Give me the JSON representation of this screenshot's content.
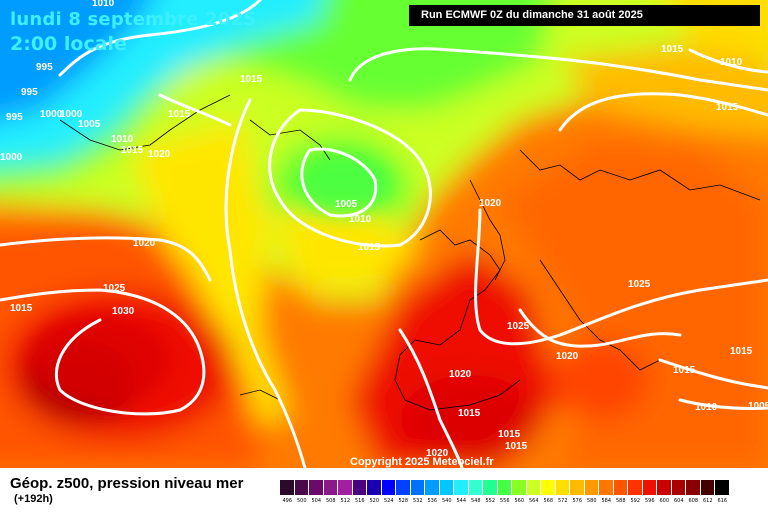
{
  "title": {
    "date": "lundi 8 septembre 2025",
    "time": "2:00 locale",
    "run": "Run ECMWF 0Z du dimanche 31 août 2025"
  },
  "copyright": "Copyright 2025 Meteociel.fr",
  "legend": {
    "title": "Géop. z500, pression niveau mer",
    "subtitle": "(+192h)",
    "steps": [
      {
        "label": "496",
        "color": "#2a0a2a"
      },
      {
        "label": "500",
        "color": "#4a0a4a"
      },
      {
        "label": "504",
        "color": "#6a0a6a"
      },
      {
        "label": "508",
        "color": "#8a1a8a"
      },
      {
        "label": "512",
        "color": "#a020a0"
      },
      {
        "label": "516",
        "color": "#4b0082"
      },
      {
        "label": "520",
        "color": "#1a00b0"
      },
      {
        "label": "524",
        "color": "#0000ff"
      },
      {
        "label": "528",
        "color": "#0040ff"
      },
      {
        "label": "532",
        "color": "#0070ff"
      },
      {
        "label": "536",
        "color": "#009cff"
      },
      {
        "label": "540",
        "color": "#00c8ff"
      },
      {
        "label": "544",
        "color": "#22eeff"
      },
      {
        "label": "548",
        "color": "#33ffd0"
      },
      {
        "label": "552",
        "color": "#22ff90"
      },
      {
        "label": "556",
        "color": "#44ff44"
      },
      {
        "label": "560",
        "color": "#88ff22"
      },
      {
        "label": "564",
        "color": "#ccff22"
      },
      {
        "label": "568",
        "color": "#ffff00"
      },
      {
        "label": "572",
        "color": "#ffdf00"
      },
      {
        "label": "576",
        "color": "#ffbb00"
      },
      {
        "label": "580",
        "color": "#ff9900"
      },
      {
        "label": "584",
        "color": "#ff7700"
      },
      {
        "label": "588",
        "color": "#ff5500"
      },
      {
        "label": "592",
        "color": "#ff3300"
      },
      {
        "label": "596",
        "color": "#ee1100"
      },
      {
        "label": "600",
        "color": "#cc0000"
      },
      {
        "label": "604",
        "color": "#aa0000"
      },
      {
        "label": "608",
        "color": "#880000"
      },
      {
        "label": "612",
        "color": "#440000"
      },
      {
        "label": "616",
        "color": "#000000"
      }
    ]
  },
  "isobars": [
    "1010",
    "1015",
    "1015",
    "995",
    "995",
    "995",
    "1000",
    "1000",
    "1005",
    "1010",
    "1015",
    "1020",
    "1005",
    "1010",
    "1015",
    "1015",
    "1020",
    "1020",
    "1025",
    "1030",
    "1015",
    "1025",
    "1020",
    "1025",
    "1015",
    "1015",
    "1010",
    "1005",
    "1020",
    "1015",
    "1015",
    "1015",
    "1020",
    "1000"
  ]
}
